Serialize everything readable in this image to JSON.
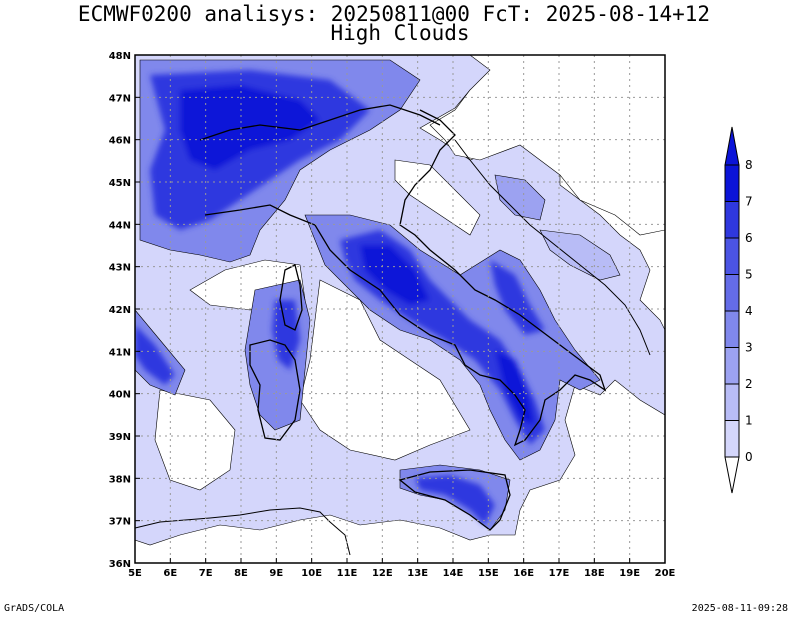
{
  "title_line1": "ECMWF0200 analisys: 20250811@00 FcT: 2025-08-14+12",
  "title_line2": "High Clouds",
  "footer_left": "GrADS/COLA",
  "footer_right": "2025-08-11-09:28",
  "map": {
    "lon_range": [
      5,
      20
    ],
    "lat_range": [
      36,
      48
    ],
    "x_ticks": [
      "5E",
      "6E",
      "7E",
      "8E",
      "9E",
      "10E",
      "11E",
      "12E",
      "13E",
      "14E",
      "15E",
      "16E",
      "17E",
      "18E",
      "19E",
      "20E"
    ],
    "y_ticks": [
      "36N",
      "37N",
      "38N",
      "39N",
      "40N",
      "41N",
      "42N",
      "43N",
      "44N",
      "45N",
      "46N",
      "47N",
      "48N"
    ],
    "grid": "dotted"
  },
  "colorbar": {
    "labels": [
      "0",
      "1",
      "2",
      "3",
      "4",
      "5",
      "6",
      "7",
      "8"
    ],
    "colors": [
      "#eeeeff",
      "#d4d6fb",
      "#b8bcf6",
      "#9ca2f1",
      "#8088ec",
      "#646ce8",
      "#4b54e4",
      "#2f38df",
      "#0b14d8"
    ]
  },
  "colors": {
    "land_outline": "#000000",
    "border_line": "#000000"
  }
}
